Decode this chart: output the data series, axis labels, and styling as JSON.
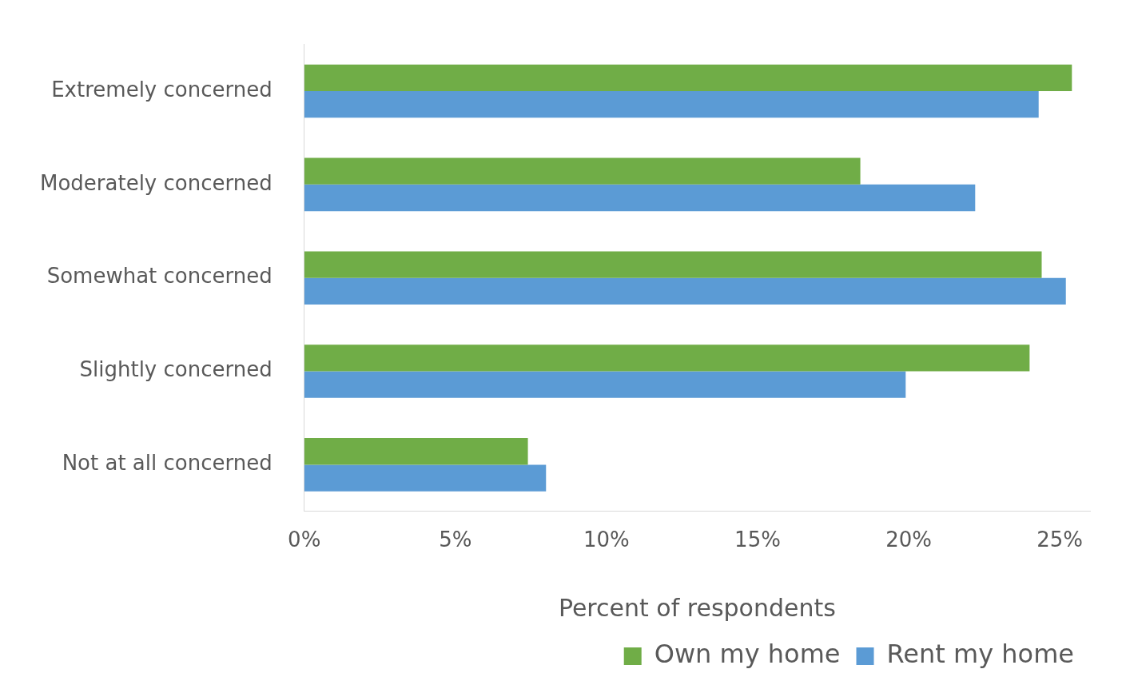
{
  "chart_data": {
    "type": "bar",
    "orientation": "horizontal",
    "xlabel": "Percent of respondents",
    "categories": [
      "Extremely concerned",
      "Moderately concerned",
      "Somewhat concerned",
      "Slightly concerned",
      "Not at all concerned"
    ],
    "series": [
      {
        "name": "Own my home",
        "color": "#70ad47",
        "values": [
          25.4,
          18.4,
          24.4,
          24.0,
          7.4
        ]
      },
      {
        "name": "Rent my home",
        "color": "#5b9bd5",
        "values": [
          24.3,
          22.2,
          25.2,
          19.9,
          8.0
        ]
      }
    ],
    "xticks": [
      {
        "value": 0,
        "label": "0%"
      },
      {
        "value": 5,
        "label": "5%"
      },
      {
        "value": 10,
        "label": "10%"
      },
      {
        "value": 15,
        "label": "15%"
      },
      {
        "value": 20,
        "label": "20%"
      },
      {
        "value": 25,
        "label": "25%"
      }
    ],
    "xlim": [
      0,
      26
    ],
    "grid": false,
    "legend": "bottom"
  }
}
